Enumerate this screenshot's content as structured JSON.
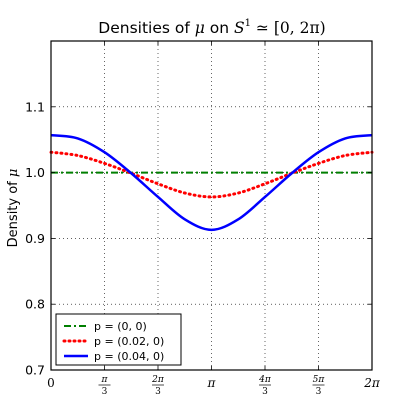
{
  "chart_data": {
    "type": "line",
    "title_prefix": "Densities of ",
    "title_mu": "μ",
    "title_on": " on ",
    "title_S": "S",
    "title_S_exp": "1",
    "title_suffix": " ≃ [0, 2π)",
    "ylabel_prefix": "Density of ",
    "ylabel_mu": "μ",
    "xlim": [
      0,
      6.283185307
    ],
    "ylim": [
      0.7,
      1.2
    ],
    "grid": true,
    "legend_position": "lower-left",
    "x_ticks": [
      {
        "value": 0,
        "type": "plain",
        "text": "0"
      },
      {
        "value": 1.0471976,
        "type": "frac",
        "num": "π",
        "den": "3"
      },
      {
        "value": 2.0943951,
        "type": "frac",
        "num": "2π",
        "den": "3"
      },
      {
        "value": 3.1415927,
        "type": "plain",
        "text": "π"
      },
      {
        "value": 4.1887902,
        "type": "frac",
        "num": "4π",
        "den": "3"
      },
      {
        "value": 5.2359878,
        "type": "frac",
        "num": "5π",
        "den": "3"
      },
      {
        "value": 6.2831853,
        "type": "plain",
        "text": "2π"
      }
    ],
    "y_ticks": [
      {
        "value": 0.7,
        "label": "0.7"
      },
      {
        "value": 0.8,
        "label": "0.8"
      },
      {
        "value": 0.9,
        "label": "0.9"
      },
      {
        "value": 1.0,
        "label": "1.0"
      },
      {
        "value": 1.1,
        "label": "1.1"
      }
    ],
    "series": [
      {
        "name": "p = (0, 0)",
        "color": "#007f00",
        "style": "dashdot",
        "x": [
          0,
          0.5236,
          1.0472,
          1.5708,
          2.0944,
          2.618,
          3.1416,
          3.6652,
          4.1888,
          4.7124,
          5.236,
          5.7596,
          6.2832
        ],
        "y": [
          1.0,
          1.0,
          1.0,
          1.0,
          1.0,
          1.0,
          1.0,
          1.0,
          1.0,
          1.0,
          1.0,
          1.0,
          1.0
        ]
      },
      {
        "name": "p = (0.02, 0)",
        "color": "#ff0000",
        "style": "dotted",
        "x": [
          0,
          0.5236,
          1.0472,
          1.5708,
          2.0944,
          2.618,
          3.1416,
          3.6652,
          4.1888,
          4.7124,
          5.236,
          5.7596,
          6.2832
        ],
        "y": [
          1.031,
          1.026,
          1.014,
          0.999,
          0.983,
          0.969,
          0.963,
          0.969,
          0.983,
          0.999,
          1.014,
          1.026,
          1.031
        ]
      },
      {
        "name": "p = (0.04, 0)",
        "color": "#0000ff",
        "style": "solid",
        "x": [
          0,
          0.5236,
          1.0472,
          1.5708,
          2.0944,
          2.618,
          3.1416,
          3.6652,
          4.1888,
          4.7124,
          5.236,
          5.7596,
          6.2832
        ],
        "y": [
          1.057,
          1.052,
          1.031,
          0.999,
          0.963,
          0.929,
          0.913,
          0.929,
          0.963,
          0.999,
          1.031,
          1.052,
          1.057
        ]
      }
    ]
  }
}
